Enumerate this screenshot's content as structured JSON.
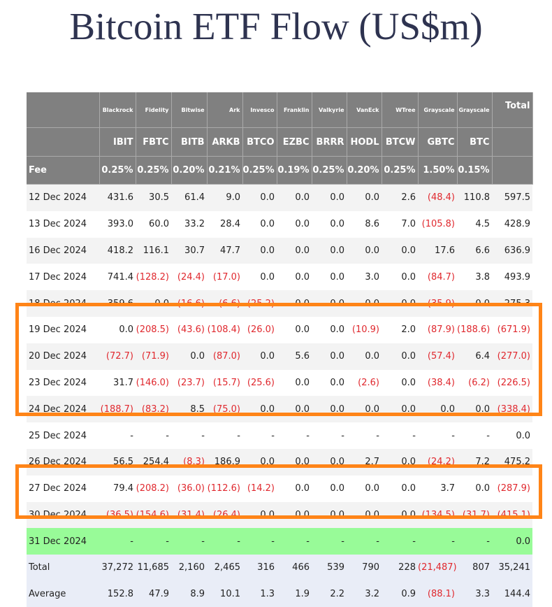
{
  "title": "Bitcoin ETF Flow (US$m)",
  "header": {
    "issuers": [
      "Blackrock",
      "Fidelity",
      "Bitwise",
      "Ark",
      "Invesco",
      "Franklin",
      "Valkyrie",
      "VanEck",
      "WTree",
      "Grayscale",
      "Grayscale"
    ],
    "total_label": "Total",
    "tickers": [
      "IBIT",
      "FBTC",
      "BITB",
      "ARKB",
      "BTCO",
      "EZBC",
      "BRRR",
      "HODL",
      "BTCW",
      "GBTC",
      "BTC"
    ],
    "fee_label": "Fee",
    "fees": [
      "0.25%",
      "0.25%",
      "0.20%",
      "0.21%",
      "0.25%",
      "0.19%",
      "0.25%",
      "0.20%",
      "0.25%",
      "1.50%",
      "0.15%"
    ]
  },
  "rows": [
    {
      "date": "12 Dec 2024",
      "cells": [
        "431.6",
        "30.5",
        "61.4",
        "9.0",
        "0.0",
        "0.0",
        "0.0",
        "0.0",
        "2.6",
        "(48.4)",
        "110.8",
        "597.5"
      ]
    },
    {
      "date": "13 Dec 2024",
      "cells": [
        "393.0",
        "60.0",
        "33.2",
        "28.4",
        "0.0",
        "0.0",
        "0.0",
        "8.6",
        "7.0",
        "(105.8)",
        "4.5",
        "428.9"
      ]
    },
    {
      "date": "16 Dec 2024",
      "cells": [
        "418.2",
        "116.1",
        "30.7",
        "47.7",
        "0.0",
        "0.0",
        "0.0",
        "0.0",
        "0.0",
        "17.6",
        "6.6",
        "636.9"
      ]
    },
    {
      "date": "17 Dec 2024",
      "cells": [
        "741.4",
        "(128.2)",
        "(24.4)",
        "(17.0)",
        "0.0",
        "0.0",
        "0.0",
        "3.0",
        "0.0",
        "(84.7)",
        "3.8",
        "493.9"
      ]
    },
    {
      "date": "18 Dec 2024",
      "cells": [
        "359.6",
        "0.0",
        "(16.6)",
        "(6.6)",
        "(25.2)",
        "0.0",
        "0.0",
        "0.0",
        "0.0",
        "(35.9)",
        "0.0",
        "275.3"
      ]
    },
    {
      "date": "19 Dec 2024",
      "cells": [
        "0.0",
        "(208.5)",
        "(43.6)",
        "(108.4)",
        "(26.0)",
        "0.0",
        "0.0",
        "(10.9)",
        "2.0",
        "(87.9)",
        "(188.6)",
        "(671.9)"
      ]
    },
    {
      "date": "20 Dec 2024",
      "cells": [
        "(72.7)",
        "(71.9)",
        "0.0",
        "(87.0)",
        "0.0",
        "5.6",
        "0.0",
        "0.0",
        "0.0",
        "(57.4)",
        "6.4",
        "(277.0)"
      ]
    },
    {
      "date": "23 Dec 2024",
      "cells": [
        "31.7",
        "(146.0)",
        "(23.7)",
        "(15.7)",
        "(25.6)",
        "0.0",
        "0.0",
        "(2.6)",
        "0.0",
        "(38.4)",
        "(6.2)",
        "(226.5)"
      ]
    },
    {
      "date": "24 Dec 2024",
      "cells": [
        "(188.7)",
        "(83.2)",
        "8.5",
        "(75.0)",
        "0.0",
        "0.0",
        "0.0",
        "0.0",
        "0.0",
        "0.0",
        "0.0",
        "(338.4)"
      ]
    },
    {
      "date": "25 Dec 2024",
      "cells": [
        "-",
        "-",
        "-",
        "-",
        "-",
        "-",
        "-",
        "-",
        "-",
        "-",
        "-",
        "0.0"
      ]
    },
    {
      "date": "26 Dec 2024",
      "cells": [
        "56.5",
        "254.4",
        "(8.3)",
        "186.9",
        "0.0",
        "0.0",
        "0.0",
        "2.7",
        "0.0",
        "(24.2)",
        "7.2",
        "475.2"
      ]
    },
    {
      "date": "27 Dec 2024",
      "cells": [
        "79.4",
        "(208.2)",
        "(36.0)",
        "(112.6)",
        "(14.2)",
        "0.0",
        "0.0",
        "0.0",
        "0.0",
        "3.7",
        "0.0",
        "(287.9)"
      ]
    },
    {
      "date": "30 Dec 2024",
      "cells": [
        "(36.5)",
        "(154.6)",
        "(31.4)",
        "(26.4)",
        "0.0",
        "0.0",
        "0.0",
        "0.0",
        "0.0",
        "(134.5)",
        "(31.7)",
        "(415.1)"
      ]
    },
    {
      "date": "31 Dec 2024",
      "cells": [
        "-",
        "-",
        "-",
        "-",
        "-",
        "-",
        "-",
        "-",
        "-",
        "-",
        "-",
        "0.0"
      ],
      "highlight": "#98fb98"
    }
  ],
  "summary": [
    {
      "label": "Total",
      "cells": [
        "37,272",
        "11,685",
        "2,160",
        "2,465",
        "316",
        "466",
        "539",
        "790",
        "228",
        "(21,487)",
        "807",
        "35,241"
      ]
    },
    {
      "label": "Average",
      "cells": [
        "152.8",
        "47.9",
        "8.9",
        "10.1",
        "1.3",
        "1.9",
        "2.2",
        "3.2",
        "0.9",
        "(88.1)",
        "3.3",
        "144.4"
      ]
    }
  ]
}
